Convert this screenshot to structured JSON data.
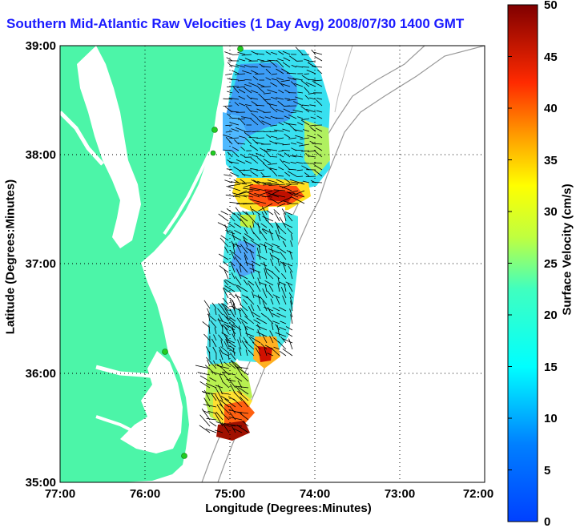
{
  "title": "Southern Mid-Atlantic Raw Velocities (1 Day Avg) 2008/07/30 1400 GMT",
  "x_axis": {
    "label": "Longitude (Degrees:Minutes)",
    "ticks": [
      "77:00",
      "76:00",
      "75:00",
      "74:00",
      "73:00",
      "72:00"
    ],
    "range": [
      77,
      72
    ]
  },
  "y_axis": {
    "label": "Latitude (Degrees:Minutes)",
    "ticks": [
      "39:00",
      "38:00",
      "37:00",
      "36:00",
      "35:00"
    ],
    "range": [
      35,
      39
    ]
  },
  "colorbar": {
    "label": "Surface Velocity (cm/s)",
    "ticks": [
      "0",
      "5",
      "10",
      "15",
      "20",
      "25",
      "30",
      "35",
      "40",
      "45",
      "50"
    ],
    "range": [
      0,
      50
    ],
    "colormap": "jet"
  },
  "colors": {
    "land": "#4cf5a8",
    "water": "#ffffff",
    "title": "#1a1aff",
    "grid": "#000000",
    "stations": "#22cc22"
  },
  "map_layers": {
    "grid": "dotted",
    "bathymetry_contours": true,
    "radar_stations": 5,
    "velocity_vectors": true
  }
}
